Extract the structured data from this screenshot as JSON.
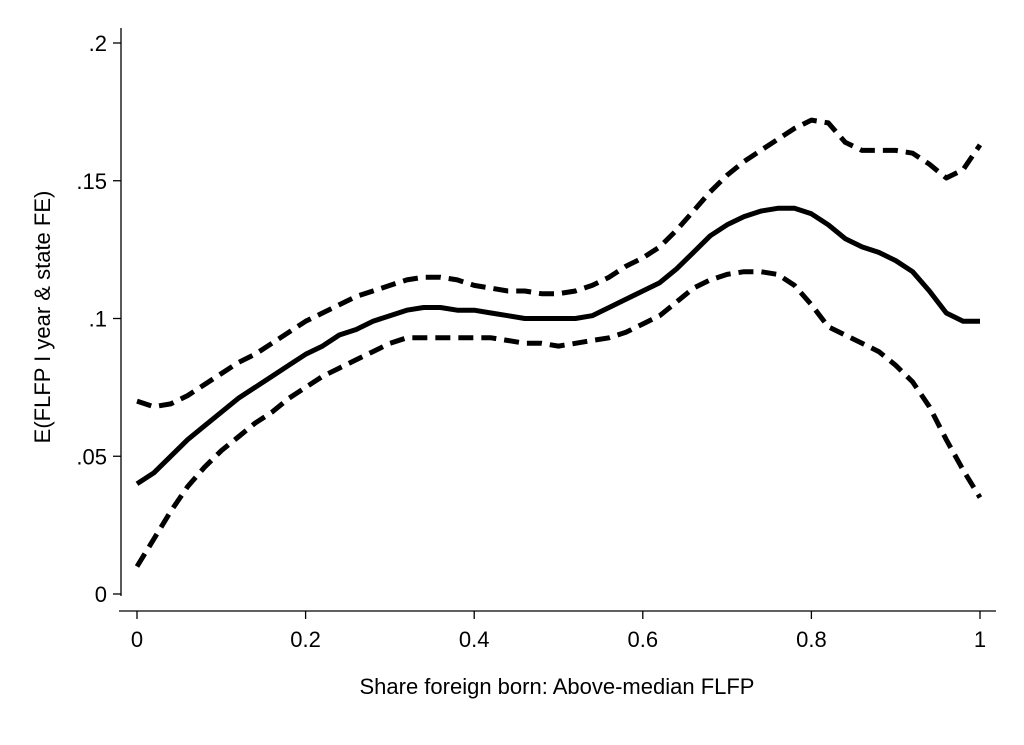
{
  "chart_data": {
    "type": "line",
    "xlabel": "Share foreign born: Above-median FLFP",
    "ylabel": "E(FLFP I year & state FE)",
    "xlim": [
      0,
      1
    ],
    "ylim": [
      0,
      0.2
    ],
    "grid": false,
    "legend": "none",
    "xticks": [
      {
        "value": 0,
        "label": "0"
      },
      {
        "value": 0.2,
        "label": "0.2"
      },
      {
        "value": 0.4,
        "label": "0.4"
      },
      {
        "value": 0.6,
        "label": "0.6"
      },
      {
        "value": 0.8,
        "label": "0.8"
      },
      {
        "value": 1,
        "label": "1"
      }
    ],
    "yticks": [
      {
        "value": 0,
        "label": "0"
      },
      {
        "value": 0.05,
        "label": ".05"
      },
      {
        "value": 0.1,
        "label": ".1"
      },
      {
        "value": 0.15,
        "label": ".15"
      },
      {
        "value": 0.2,
        "label": ".2"
      }
    ],
    "x": [
      0,
      0.02,
      0.04,
      0.06,
      0.08,
      0.1,
      0.12,
      0.14,
      0.16,
      0.18,
      0.2,
      0.22,
      0.24,
      0.26,
      0.28,
      0.3,
      0.32,
      0.34,
      0.36,
      0.38,
      0.4,
      0.42,
      0.44,
      0.46,
      0.48,
      0.5,
      0.52,
      0.54,
      0.56,
      0.58,
      0.6,
      0.62,
      0.64,
      0.66,
      0.68,
      0.7,
      0.72,
      0.74,
      0.76,
      0.78,
      0.8,
      0.82,
      0.84,
      0.86,
      0.88,
      0.9,
      0.92,
      0.94,
      0.96,
      0.98,
      1.0
    ],
    "series": [
      {
        "style": "solid",
        "values": [
          0.04,
          0.044,
          0.05,
          0.056,
          0.061,
          0.066,
          0.071,
          0.075,
          0.079,
          0.083,
          0.087,
          0.09,
          0.094,
          0.096,
          0.099,
          0.101,
          0.103,
          0.104,
          0.104,
          0.103,
          0.103,
          0.102,
          0.101,
          0.1,
          0.1,
          0.1,
          0.1,
          0.101,
          0.104,
          0.107,
          0.11,
          0.113,
          0.118,
          0.124,
          0.13,
          0.134,
          0.137,
          0.139,
          0.14,
          0.14,
          0.138,
          0.134,
          0.129,
          0.126,
          0.124,
          0.121,
          0.117,
          0.11,
          0.102,
          0.099,
          0.099
        ]
      },
      {
        "style": "dashed",
        "values": [
          0.07,
          0.068,
          0.069,
          0.072,
          0.076,
          0.08,
          0.084,
          0.087,
          0.091,
          0.095,
          0.099,
          0.102,
          0.105,
          0.108,
          0.11,
          0.112,
          0.114,
          0.115,
          0.115,
          0.114,
          0.112,
          0.111,
          0.11,
          0.11,
          0.109,
          0.109,
          0.11,
          0.112,
          0.115,
          0.119,
          0.122,
          0.126,
          0.132,
          0.139,
          0.146,
          0.152,
          0.157,
          0.161,
          0.165,
          0.169,
          0.172,
          0.171,
          0.164,
          0.161,
          0.161,
          0.161,
          0.16,
          0.156,
          0.151,
          0.154,
          0.163
        ]
      },
      {
        "style": "dashed",
        "values": [
          0.01,
          0.02,
          0.03,
          0.039,
          0.046,
          0.052,
          0.057,
          0.062,
          0.066,
          0.071,
          0.075,
          0.079,
          0.082,
          0.085,
          0.088,
          0.091,
          0.093,
          0.093,
          0.093,
          0.093,
          0.093,
          0.093,
          0.092,
          0.091,
          0.091,
          0.09,
          0.091,
          0.092,
          0.093,
          0.095,
          0.098,
          0.101,
          0.106,
          0.111,
          0.114,
          0.116,
          0.117,
          0.117,
          0.116,
          0.112,
          0.105,
          0.097,
          0.094,
          0.091,
          0.088,
          0.083,
          0.077,
          0.068,
          0.056,
          0.045,
          0.035
        ]
      }
    ]
  }
}
